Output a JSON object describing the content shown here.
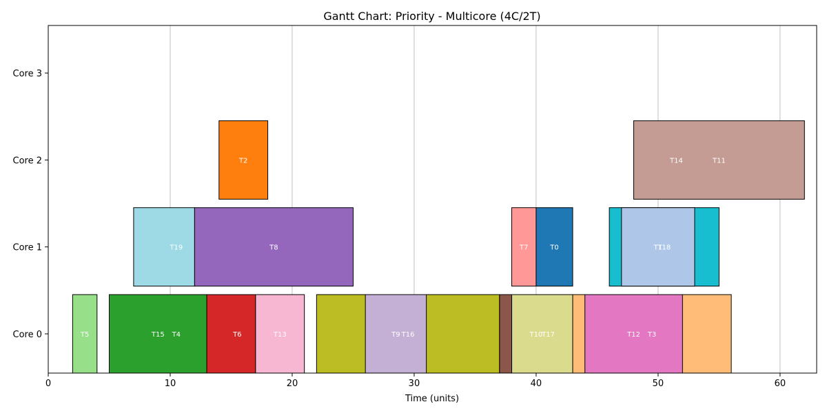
{
  "chart_data": {
    "type": "gantt",
    "title": "Gantt Chart: Priority - Multicore (4C/2T)",
    "xlabel": "Time (units)",
    "ylabel": "",
    "xlim": [
      0,
      63
    ],
    "xticks": [
      0,
      10,
      20,
      30,
      40,
      50,
      60
    ],
    "rows": [
      "Core 0",
      "Core 1",
      "Core 2",
      "Core 3"
    ],
    "grid": "vertical",
    "bars": [
      {
        "row": 0,
        "start": 2,
        "end": 4,
        "color": "#98df8a",
        "label": "T5"
      },
      {
        "row": 0,
        "start": 5,
        "end": 13,
        "color": "#2ca02c",
        "label": ""
      },
      {
        "row": 0,
        "start": 13,
        "end": 17,
        "color": "#d62728",
        "label": ""
      },
      {
        "row": 0,
        "start": 17,
        "end": 21,
        "color": "#f7b6d2",
        "label": ""
      },
      {
        "row": 0,
        "start": 22,
        "end": 37,
        "color": "#bcbd22",
        "label": ""
      },
      {
        "row": 0,
        "start": 26,
        "end": 31,
        "color": "#c5b0d5",
        "label": ""
      },
      {
        "row": 0,
        "start": 37,
        "end": 38,
        "color": "#8c564b",
        "label": ""
      },
      {
        "row": 0,
        "start": 38,
        "end": 43,
        "color": "#dbdb8d",
        "label": ""
      },
      {
        "row": 0,
        "start": 43,
        "end": 56,
        "color": "#ffbb78",
        "label": ""
      },
      {
        "row": 0,
        "start": 44,
        "end": 52,
        "color": "#e377c2",
        "label": ""
      },
      {
        "row": 1,
        "start": 7,
        "end": 12,
        "color": "#9edae5",
        "label": ""
      },
      {
        "row": 1,
        "start": 12,
        "end": 25,
        "color": "#9467bd",
        "label": ""
      },
      {
        "row": 1,
        "start": 38,
        "end": 40,
        "color": "#ff9896",
        "label": ""
      },
      {
        "row": 1,
        "start": 40,
        "end": 43,
        "color": "#1f77b4",
        "label": ""
      },
      {
        "row": 1,
        "start": 46,
        "end": 55,
        "color": "#17becf",
        "label": ""
      },
      {
        "row": 1,
        "start": 47,
        "end": 53,
        "color": "#aec7e8",
        "label": ""
      },
      {
        "row": 2,
        "start": 14,
        "end": 18,
        "color": "#ff7f0e",
        "label": "T2"
      },
      {
        "row": 2,
        "start": 48,
        "end": 62,
        "color": "#c49c94",
        "label": ""
      }
    ],
    "labels": [
      {
        "row": 0,
        "x": 9,
        "text": "T15"
      },
      {
        "row": 0,
        "x": 10.5,
        "text": "T4"
      },
      {
        "row": 0,
        "x": 15.5,
        "text": "T6"
      },
      {
        "row": 0,
        "x": 19,
        "text": "T13"
      },
      {
        "row": 0,
        "x": 28.5,
        "text": "T9"
      },
      {
        "row": 0,
        "x": 29.5,
        "text": "T16"
      },
      {
        "row": 0,
        "x": 40,
        "text": "T10"
      },
      {
        "row": 0,
        "x": 41,
        "text": "T17"
      },
      {
        "row": 0,
        "x": 48,
        "text": "T12"
      },
      {
        "row": 0,
        "x": 49.5,
        "text": "T3"
      },
      {
        "row": 1,
        "x": 10.5,
        "text": "T19"
      },
      {
        "row": 1,
        "x": 18.5,
        "text": "T8"
      },
      {
        "row": 1,
        "x": 39,
        "text": "T7"
      },
      {
        "row": 1,
        "x": 41.5,
        "text": "T0"
      },
      {
        "row": 1,
        "x": 50,
        "text": "T1"
      },
      {
        "row": 1,
        "x": 50.5,
        "text": "T18"
      },
      {
        "row": 2,
        "x": 51.5,
        "text": "T14"
      },
      {
        "row": 2,
        "x": 55,
        "text": "T11"
      }
    ]
  }
}
